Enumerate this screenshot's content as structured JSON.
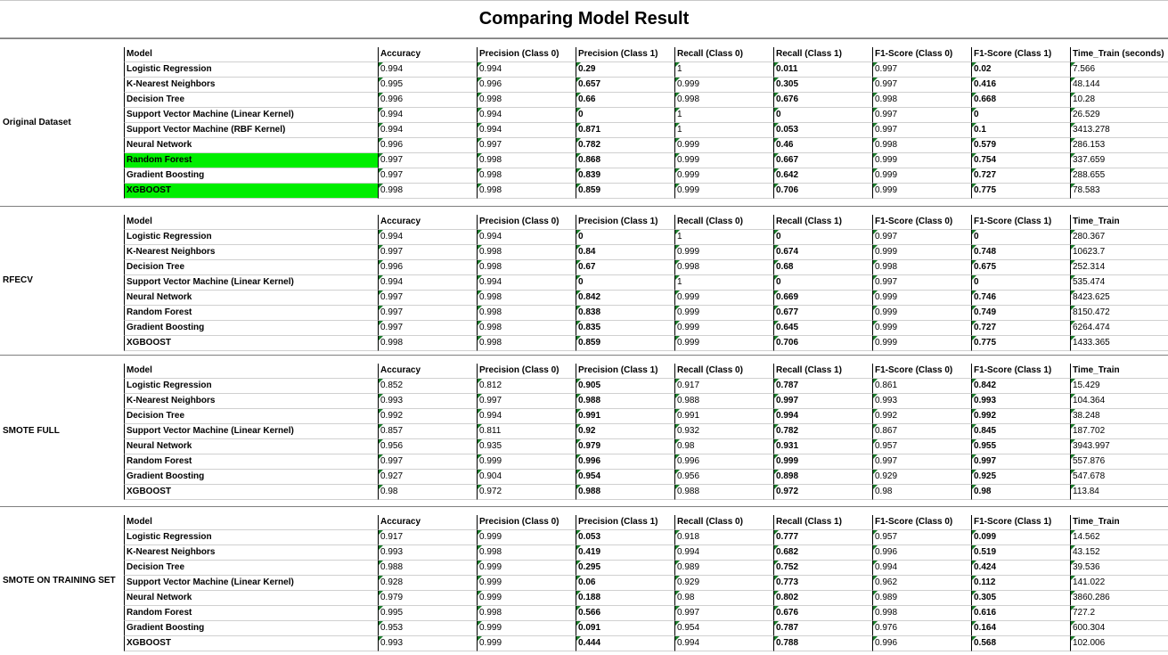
{
  "title": "Comparing Model Result",
  "highlight_color": "#00ee00",
  "groups": [
    {
      "label": "Original Dataset",
      "header": [
        "Model",
        "Accuracy",
        "Precision (Class 0)",
        "Precision (Class 1)",
        "Recall (Class 0)",
        "Recall (Class 1)",
        "F1-Score (Class 0)",
        "F1-Score (Class 1)",
        "Time_Train (seconds)"
      ],
      "rows": [
        {
          "cells": [
            "Logistic Regression",
            "0.994",
            "0.994",
            "0.29",
            "1",
            "0.011",
            "0.997",
            "0.02",
            "7.566"
          ]
        },
        {
          "cells": [
            "K-Nearest Neighbors",
            "0.995",
            "0.996",
            "0.657",
            "0.999",
            "0.305",
            "0.997",
            "0.416",
            "48.144"
          ]
        },
        {
          "cells": [
            "Decision Tree",
            "0.996",
            "0.998",
            "0.66",
            "0.998",
            "0.676",
            "0.998",
            "0.668",
            "10.28"
          ]
        },
        {
          "cells": [
            "Support Vector Machine (Linear Kernel)",
            "0.994",
            "0.994",
            "0",
            "1",
            "0",
            "0.997",
            "0",
            "26.529"
          ]
        },
        {
          "cells": [
            "Support Vector Machine (RBF Kernel)",
            "0.994",
            "0.994",
            "0.871",
            "1",
            "0.053",
            "0.997",
            "0.1",
            "3413.278"
          ]
        },
        {
          "cells": [
            "Neural Network",
            "0.996",
            "0.997",
            "0.782",
            "0.999",
            "0.46",
            "0.998",
            "0.579",
            "286.153"
          ]
        },
        {
          "cells": [
            "Random Forest",
            "0.997",
            "0.998",
            "0.868",
            "0.999",
            "0.667",
            "0.999",
            "0.754",
            "337.659"
          ],
          "highlight": true
        },
        {
          "cells": [
            "Gradient Boosting",
            "0.997",
            "0.998",
            "0.839",
            "0.999",
            "0.642",
            "0.999",
            "0.727",
            "288.655"
          ]
        },
        {
          "cells": [
            "XGBOOST",
            "0.998",
            "0.998",
            "0.859",
            "0.999",
            "0.706",
            "0.999",
            "0.775",
            "78.583"
          ],
          "highlight": true
        }
      ]
    },
    {
      "label": "RFECV",
      "header": [
        "Model",
        "Accuracy",
        "Precision (Class 0)",
        "Precision (Class 1)",
        "Recall (Class 0)",
        "Recall (Class 1)",
        "F1-Score (Class 0)",
        "F1-Score (Class 1)",
        "Time_Train"
      ],
      "rows": [
        {
          "cells": [
            "Logistic Regression",
            "0.994",
            "0.994",
            "0",
            "1",
            "0",
            "0.997",
            "0",
            "280.367"
          ]
        },
        {
          "cells": [
            "K-Nearest Neighbors",
            "0.997",
            "0.998",
            "0.84",
            "0.999",
            "0.674",
            "0.999",
            "0.748",
            "10623.7"
          ]
        },
        {
          "cells": [
            "Decision Tree",
            "0.996",
            "0.998",
            "0.67",
            "0.998",
            "0.68",
            "0.998",
            "0.675",
            "252.314"
          ]
        },
        {
          "cells": [
            "Support Vector Machine (Linear Kernel)",
            "0.994",
            "0.994",
            "0",
            "1",
            "0",
            "0.997",
            "0",
            "535.474"
          ]
        },
        {
          "cells": [
            "Neural Network",
            "0.997",
            "0.998",
            "0.842",
            "0.999",
            "0.669",
            "0.999",
            "0.746",
            "8423.625"
          ]
        },
        {
          "cells": [
            "Random Forest",
            "0.997",
            "0.998",
            "0.838",
            "0.999",
            "0.677",
            "0.999",
            "0.749",
            "8150.472"
          ]
        },
        {
          "cells": [
            "Gradient Boosting",
            "0.997",
            "0.998",
            "0.835",
            "0.999",
            "0.645",
            "0.999",
            "0.727",
            "6264.474"
          ]
        },
        {
          "cells": [
            "XGBOOST",
            "0.998",
            "0.998",
            "0.859",
            "0.999",
            "0.706",
            "0.999",
            "0.775",
            "1433.365"
          ]
        }
      ]
    },
    {
      "label": "SMOTE FULL",
      "header": [
        "Model",
        "Accuracy",
        "Precision (Class 0)",
        "Precision (Class 1)",
        "Recall (Class 0)",
        "Recall (Class 1)",
        "F1-Score (Class 0)",
        "F1-Score (Class 1)",
        "Time_Train"
      ],
      "rows": [
        {
          "cells": [
            "Logistic Regression",
            "0.852",
            "0.812",
            "0.905",
            "0.917",
            "0.787",
            "0.861",
            "0.842",
            "15.429"
          ]
        },
        {
          "cells": [
            "K-Nearest Neighbors",
            "0.993",
            "0.997",
            "0.988",
            "0.988",
            "0.997",
            "0.993",
            "0.993",
            "104.364"
          ]
        },
        {
          "cells": [
            "Decision Tree",
            "0.992",
            "0.994",
            "0.991",
            "0.991",
            "0.994",
            "0.992",
            "0.992",
            "38.248"
          ]
        },
        {
          "cells": [
            "Support Vector Machine (Linear Kernel)",
            "0.857",
            "0.811",
            "0.92",
            "0.932",
            "0.782",
            "0.867",
            "0.845",
            "187.702"
          ]
        },
        {
          "cells": [
            "Neural Network",
            "0.956",
            "0.935",
            "0.979",
            "0.98",
            "0.931",
            "0.957",
            "0.955",
            "3943.997"
          ]
        },
        {
          "cells": [
            "Random Forest",
            "0.997",
            "0.999",
            "0.996",
            "0.996",
            "0.999",
            "0.997",
            "0.997",
            "557.876"
          ]
        },
        {
          "cells": [
            "Gradient Boosting",
            "0.927",
            "0.904",
            "0.954",
            "0.956",
            "0.898",
            "0.929",
            "0.925",
            "547.678"
          ]
        },
        {
          "cells": [
            "XGBOOST",
            "0.98",
            "0.972",
            "0.988",
            "0.988",
            "0.972",
            "0.98",
            "0.98",
            "113.84"
          ]
        }
      ]
    },
    {
      "label": "SMOTE ON TRAINING SET",
      "header": [
        "Model",
        "Accuracy",
        "Precision (Class 0)",
        "Precision (Class 1)",
        "Recall (Class 0)",
        "Recall (Class 1)",
        "F1-Score (Class 0)",
        "F1-Score (Class 1)",
        "Time_Train"
      ],
      "rows": [
        {
          "cells": [
            "Logistic Regression",
            "0.917",
            "0.999",
            "0.053",
            "0.918",
            "0.777",
            "0.957",
            "0.099",
            "14.562"
          ]
        },
        {
          "cells": [
            "K-Nearest Neighbors",
            "0.993",
            "0.998",
            "0.419",
            "0.994",
            "0.682",
            "0.996",
            "0.519",
            "43.152"
          ]
        },
        {
          "cells": [
            "Decision Tree",
            "0.988",
            "0.999",
            "0.295",
            "0.989",
            "0.752",
            "0.994",
            "0.424",
            "39.536"
          ]
        },
        {
          "cells": [
            "Support Vector Machine (Linear Kernel)",
            "0.928",
            "0.999",
            "0.06",
            "0.929",
            "0.773",
            "0.962",
            "0.112",
            "141.022"
          ]
        },
        {
          "cells": [
            "Neural Network",
            "0.979",
            "0.999",
            "0.188",
            "0.98",
            "0.802",
            "0.989",
            "0.305",
            "3860.286"
          ]
        },
        {
          "cells": [
            "Random Forest",
            "0.995",
            "0.998",
            "0.566",
            "0.997",
            "0.676",
            "0.998",
            "0.616",
            "727.2"
          ]
        },
        {
          "cells": [
            "Gradient Boosting",
            "0.953",
            "0.999",
            "0.091",
            "0.954",
            "0.787",
            "0.976",
            "0.164",
            "600.304"
          ]
        },
        {
          "cells": [
            "XGBOOST",
            "0.993",
            "0.999",
            "0.444",
            "0.994",
            "0.788",
            "0.996",
            "0.568",
            "102.006"
          ]
        }
      ]
    }
  ]
}
